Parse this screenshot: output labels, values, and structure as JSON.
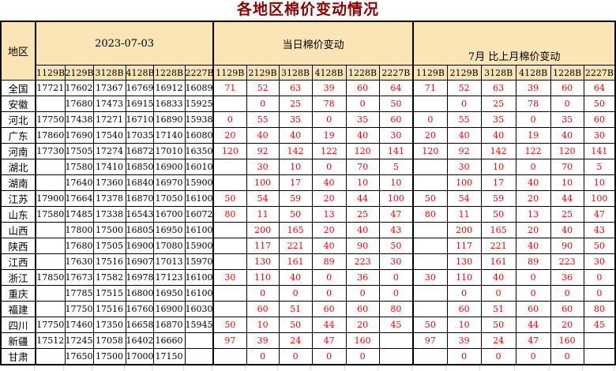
{
  "title": "各地区棉价变动情况",
  "colors": {
    "header_bg": "#FBE5B6",
    "change_text": "#FF0000",
    "title_text": "#8B0000",
    "border": "#000000",
    "gridline": "#D4D4D4"
  },
  "table": {
    "region_header": "地区",
    "groups": [
      {
        "label": "2023-07-03"
      },
      {
        "label": "当日棉价变动"
      },
      {
        "label": "7月 比上月棉价变动"
      }
    ],
    "grades": [
      "1129B",
      "2129B",
      "3128B",
      "4128B",
      "1228B",
      "2227B"
    ],
    "rows": [
      {
        "region": "全国",
        "prices": [
          "17721",
          "17602",
          "17367",
          "16769",
          "16912",
          "16089"
        ],
        "daily": [
          "71",
          "52",
          "63",
          "39",
          "60",
          "64"
        ],
        "monthly": [
          "71",
          "52",
          "63",
          "39",
          "60",
          "64"
        ]
      },
      {
        "region": "安徽",
        "prices": [
          "",
          "17680",
          "17473",
          "16915",
          "16833",
          "15925"
        ],
        "daily": [
          "",
          "0",
          "25",
          "78",
          "0",
          "50"
        ],
        "monthly": [
          "",
          "0",
          "25",
          "78",
          "0",
          "50"
        ]
      },
      {
        "region": "河北",
        "prices": [
          "17750",
          "17438",
          "17271",
          "16710",
          "16890",
          "15938"
        ],
        "daily": [
          "0",
          "55",
          "35",
          "0",
          "35",
          "60"
        ],
        "monthly": [
          "0",
          "55",
          "35",
          "0",
          "35",
          "60"
        ]
      },
      {
        "region": "广东",
        "prices": [
          "17860",
          "17690",
          "17540",
          "17035",
          "17140",
          "16080"
        ],
        "daily": [
          "20",
          "40",
          "40",
          "19",
          "40",
          "30"
        ],
        "monthly": [
          "20",
          "40",
          "40",
          "19",
          "40",
          "30"
        ]
      },
      {
        "region": "河南",
        "prices": [
          "17730",
          "17505",
          "17274",
          "16872",
          "17010",
          "16350"
        ],
        "daily": [
          "120",
          "92",
          "142",
          "122",
          "120",
          "141"
        ],
        "monthly": [
          "120",
          "92",
          "142",
          "122",
          "120",
          "141"
        ]
      },
      {
        "region": "湖北",
        "prices": [
          "",
          "17580",
          "17410",
          "16850",
          "16900",
          "16010"
        ],
        "daily": [
          "",
          "30",
          "10",
          "0",
          "70",
          "5"
        ],
        "monthly": [
          "",
          "30",
          "10",
          "0",
          "70",
          "5"
        ]
      },
      {
        "region": "湖南",
        "prices": [
          "",
          "17640",
          "17360",
          "16840",
          "16970",
          "15900"
        ],
        "daily": [
          "",
          "100",
          "17",
          "40",
          "10",
          "10"
        ],
        "monthly": [
          "",
          "100",
          "17",
          "40",
          "10",
          "10"
        ]
      },
      {
        "region": "江苏",
        "prices": [
          "17900",
          "17664",
          "17378",
          "16870",
          "17050",
          "16100"
        ],
        "daily": [
          "50",
          "54",
          "59",
          "20",
          "44",
          "100"
        ],
        "monthly": [
          "50",
          "54",
          "59",
          "20",
          "44",
          "100"
        ]
      },
      {
        "region": "山东",
        "prices": [
          "17580",
          "17485",
          "17338",
          "16543",
          "16700",
          "16072"
        ],
        "daily": [
          "80",
          "11",
          "50",
          "13",
          "25",
          "47"
        ],
        "monthly": [
          "80",
          "11",
          "50",
          "13",
          "25",
          "47"
        ]
      },
      {
        "region": "山西",
        "prices": [
          "",
          "17800",
          "17500",
          "16805",
          "16950",
          "16100"
        ],
        "daily": [
          "",
          "200",
          "165",
          "20",
          "40",
          "43"
        ],
        "monthly": [
          "",
          "200",
          "165",
          "20",
          "40",
          "43"
        ]
      },
      {
        "region": "陕西",
        "prices": [
          "",
          "17680",
          "17505",
          "16900",
          "17080",
          "15900"
        ],
        "daily": [
          "",
          "117",
          "221",
          "40",
          "90",
          "50"
        ],
        "monthly": [
          "",
          "117",
          "221",
          "40",
          "90",
          "50"
        ]
      },
      {
        "region": "江西",
        "prices": [
          "",
          "17630",
          "17516",
          "16907",
          "17013",
          "15970"
        ],
        "daily": [
          "",
          "130",
          "161",
          "89",
          "223",
          "30"
        ],
        "monthly": [
          "",
          "130",
          "161",
          "89",
          "223",
          "30"
        ]
      },
      {
        "region": "浙江",
        "prices": [
          "17850",
          "17673",
          "17582",
          "16978",
          "17123",
          "16100"
        ],
        "daily": [
          "30",
          "110",
          "40",
          "0",
          "36",
          "0"
        ],
        "monthly": [
          "30",
          "110",
          "40",
          "0",
          "36",
          "0"
        ]
      },
      {
        "region": "重庆",
        "prices": [
          "",
          "17785",
          "17515",
          "16800",
          "16950",
          "16100"
        ],
        "daily": [
          "",
          "0",
          "0",
          "0",
          "0",
          "0"
        ],
        "monthly": [
          "",
          "0",
          "0",
          "0",
          "0",
          "0"
        ]
      },
      {
        "region": "福建",
        "prices": [
          "",
          "17750",
          "17516",
          "16760",
          "16900",
          "16030"
        ],
        "daily": [
          "",
          "60",
          "51",
          "60",
          "60",
          "80"
        ],
        "monthly": [
          "",
          "60",
          "51",
          "60",
          "60",
          "80"
        ]
      },
      {
        "region": "四川",
        "prices": [
          "17750",
          "17460",
          "17350",
          "16658",
          "16870",
          "15945"
        ],
        "daily": [
          "50",
          "10",
          "50",
          "44",
          "20",
          "45"
        ],
        "monthly": [
          "50",
          "10",
          "50",
          "44",
          "20",
          "45"
        ]
      },
      {
        "region": "新疆",
        "prices": [
          "17512",
          "17245",
          "17058",
          "16402",
          "16660",
          ""
        ],
        "daily": [
          "97",
          "39",
          "24",
          "47",
          "160",
          ""
        ],
        "monthly": [
          "97",
          "39",
          "24",
          "47",
          "160",
          ""
        ]
      },
      {
        "region": "甘肃",
        "prices": [
          "",
          "17650",
          "17500",
          "17000",
          "17150",
          ""
        ],
        "daily": [
          "",
          "0",
          "0",
          "0",
          "0",
          ""
        ],
        "monthly": [
          "",
          "0",
          "0",
          "0",
          "0",
          ""
        ]
      }
    ]
  }
}
